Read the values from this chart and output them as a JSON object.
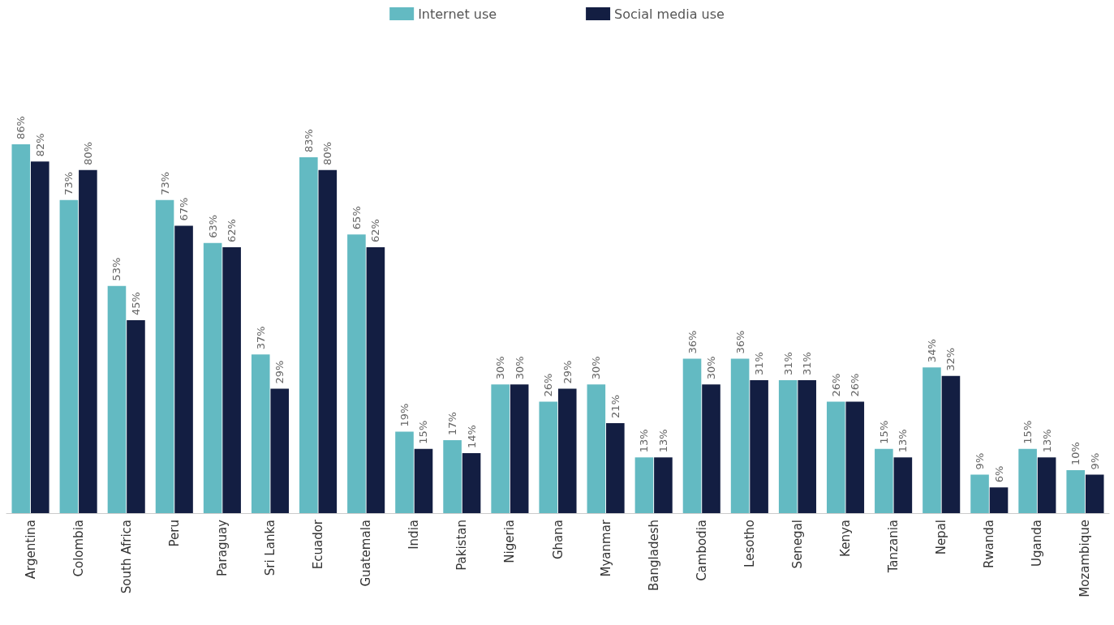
{
  "chart_data": {
    "type": "bar",
    "legend": "top",
    "grid": false,
    "categories": [
      "Argentina",
      "Colombia",
      "South Africa",
      "Peru",
      "Paraguay",
      "Sri Lanka",
      "Ecuador",
      "Guatemala",
      "India",
      "Pakistan",
      "Nigeria",
      "Ghana",
      "Myanmar",
      "Bangladesh",
      "Cambodia",
      "Lesotho",
      "Senegal",
      "Kenya",
      "Tanzania",
      "Nepal",
      "Rwanda",
      "Uganda",
      "Mozambique"
    ],
    "series": [
      {
        "name": "Internet use",
        "color": "#63bac2",
        "values": [
          86,
          73,
          53,
          73,
          63,
          37,
          83,
          65,
          19,
          17,
          30,
          26,
          30,
          13,
          36,
          36,
          31,
          26,
          15,
          34,
          9,
          15,
          10
        ],
        "value_labels": [
          "86%",
          "73%",
          "53%",
          "73%",
          "63%",
          "37%",
          "83%",
          "65%",
          "19%",
          "17%",
          "30%",
          "26%",
          "30%",
          "13%",
          "36%",
          "36%",
          "31%",
          "26%",
          "15%",
          "34%",
          "9%",
          "15%",
          "10%"
        ]
      },
      {
        "name": "Social media use",
        "color": "#131e42",
        "values": [
          82,
          80,
          45,
          67,
          62,
          29,
          80,
          62,
          15,
          14,
          30,
          29,
          21,
          13,
          30,
          31,
          31,
          26,
          13,
          32,
          6,
          13,
          9
        ],
        "value_labels": [
          "82%",
          "80%",
          "45%",
          "67%",
          "62%",
          "29%",
          "80%",
          "62%",
          "15%",
          "14%",
          "30%",
          "29%",
          "21%",
          "13%",
          "30%",
          "31%",
          "31%",
          "26%",
          "13%",
          "32%",
          "6%",
          "13%",
          "9%"
        ]
      }
    ]
  }
}
